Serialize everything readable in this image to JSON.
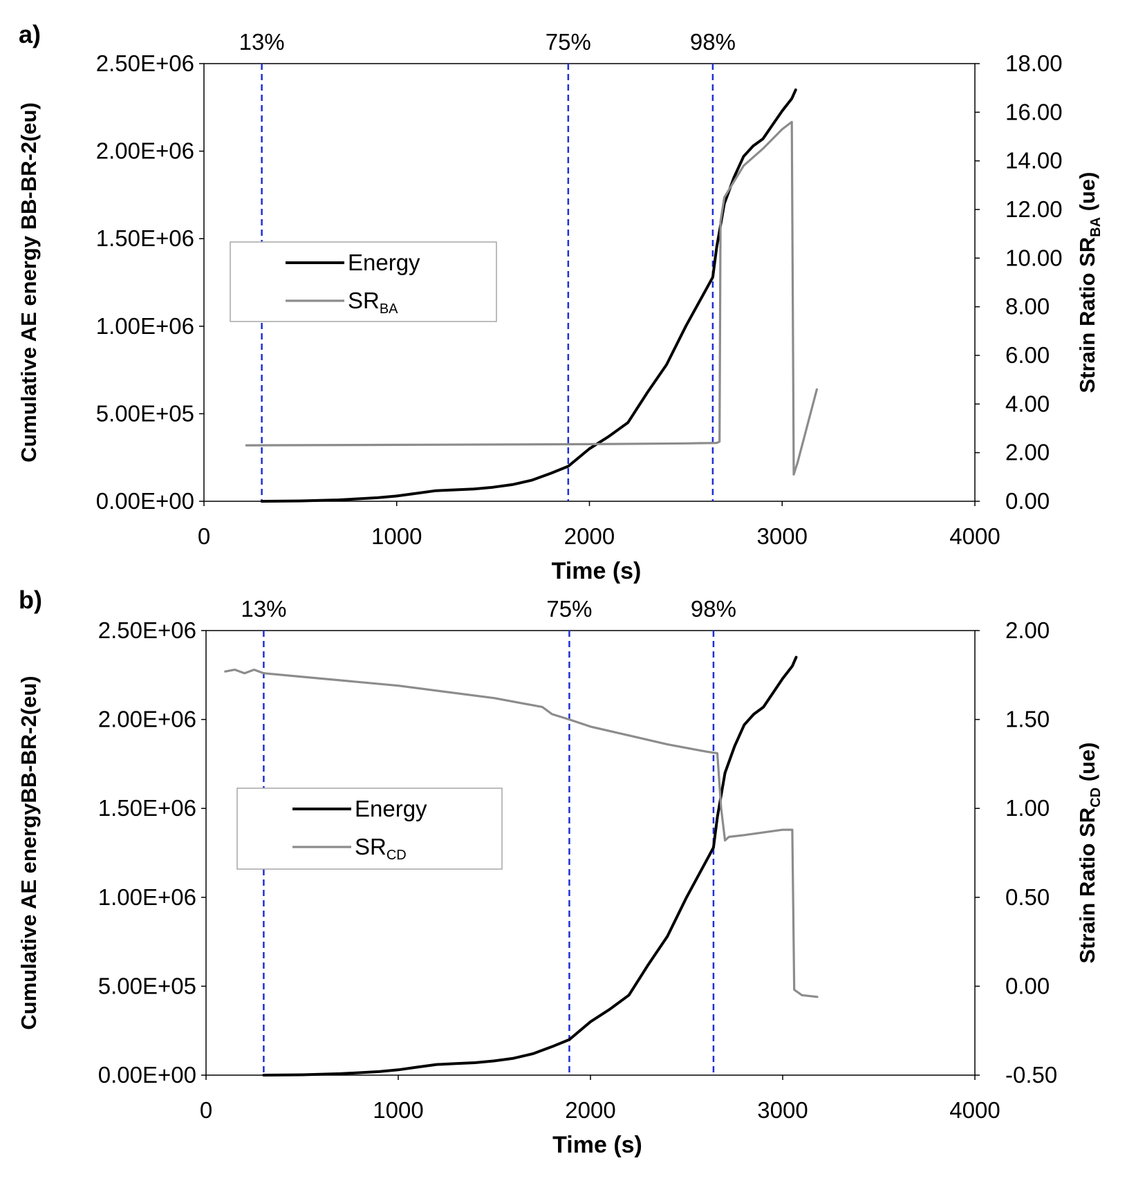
{
  "chart_data": [
    {
      "panel_label": "a)",
      "type": "line",
      "xlabel": "Time (s)",
      "xlim": [
        0,
        4000
      ],
      "xticks": [
        0,
        1000,
        2000,
        3000,
        4000
      ],
      "ylabel_left": "Cumulative AE energy BB-BR-2(eu)",
      "ylim_left": [
        0,
        2500000
      ],
      "yticks_left": [
        "0.00E+00",
        "5.00E+05",
        "1.00E+06",
        "1.50E+06",
        "2.00E+06",
        "2.50E+06"
      ],
      "ylabel_right": {
        "main": "Strain Ratio SR",
        "sub": "BA",
        "unit": " (ue)"
      },
      "ylim_right": [
        0,
        18
      ],
      "yticks_right": [
        "0.00",
        "2.00",
        "4.00",
        "6.00",
        "8.00",
        "10.00",
        "12.00",
        "14.00",
        "16.00",
        "18.00"
      ],
      "vlines": [
        {
          "x": 300,
          "label": "13%"
        },
        {
          "x": 1890,
          "label": "75%"
        },
        {
          "x": 2640,
          "label": "98%"
        }
      ],
      "legend": [
        {
          "name": "Energy"
        },
        {
          "name": "SR",
          "sub": "BA"
        }
      ],
      "legend_position": "middle-left",
      "series": [
        {
          "name": "Energy",
          "axis": "left",
          "color": "#000000",
          "x": [
            300,
            500,
            700,
            900,
            1000,
            1100,
            1200,
            1300,
            1400,
            1500,
            1600,
            1700,
            1800,
            1890,
            2000,
            2100,
            2200,
            2300,
            2400,
            2500,
            2600,
            2640,
            2660,
            2700,
            2750,
            2800,
            2850,
            2900,
            2950,
            3000,
            3050,
            3070
          ],
          "y": [
            0,
            2000,
            8000,
            20000,
            30000,
            45000,
            60000,
            65000,
            70000,
            80000,
            95000,
            120000,
            160000,
            200000,
            300000,
            370000,
            450000,
            620000,
            780000,
            1000000,
            1200000,
            1280000,
            1450000,
            1700000,
            1850000,
            1970000,
            2030000,
            2070000,
            2150000,
            2230000,
            2300000,
            2350000
          ]
        },
        {
          "name": "SR_BA",
          "axis": "right",
          "color": "#8c8c8c",
          "x": [
            220,
            1000,
            2000,
            2500,
            2660,
            2675,
            2680,
            2700,
            2800,
            2900,
            3000,
            3050,
            3060,
            3080,
            3180
          ],
          "y": [
            2.3,
            2.32,
            2.35,
            2.38,
            2.4,
            2.45,
            11.5,
            12.5,
            13.8,
            14.5,
            15.3,
            15.6,
            1.1,
            1.6,
            4.6
          ]
        }
      ]
    },
    {
      "panel_label": "b)",
      "type": "line",
      "xlabel": "Time (s)",
      "xlim": [
        0,
        4000
      ],
      "xticks": [
        0,
        1000,
        2000,
        3000,
        4000
      ],
      "ylabel_left": "Cumulative AE energyBB-BR-2(eu)",
      "ylim_left": [
        0,
        2500000
      ],
      "yticks_left": [
        "0.00E+00",
        "5.00E+05",
        "1.00E+06",
        "1.50E+06",
        "2.00E+06",
        "2.50E+06"
      ],
      "ylabel_right": {
        "main": "Strain Ratio SR",
        "sub": "CD",
        "unit": " (ue)"
      },
      "ylim_right": [
        -0.5,
        2.0
      ],
      "yticks_right": [
        "-0.50",
        "0.00",
        "0.50",
        "1.00",
        "1.50",
        "2.00"
      ],
      "vlines": [
        {
          "x": 300,
          "label": "13%"
        },
        {
          "x": 1890,
          "label": "75%"
        },
        {
          "x": 2640,
          "label": "98%"
        }
      ],
      "legend": [
        {
          "name": "Energy"
        },
        {
          "name": "SR",
          "sub": "CD"
        }
      ],
      "legend_position": "middle-left",
      "series": [
        {
          "name": "Energy",
          "axis": "left",
          "color": "#000000",
          "x": [
            300,
            500,
            700,
            900,
            1000,
            1100,
            1200,
            1300,
            1400,
            1500,
            1600,
            1700,
            1800,
            1890,
            2000,
            2100,
            2200,
            2300,
            2400,
            2500,
            2600,
            2640,
            2660,
            2700,
            2750,
            2800,
            2850,
            2900,
            2950,
            3000,
            3050,
            3070
          ],
          "y": [
            0,
            2000,
            8000,
            20000,
            30000,
            45000,
            60000,
            65000,
            70000,
            80000,
            95000,
            120000,
            160000,
            200000,
            300000,
            370000,
            450000,
            620000,
            780000,
            1000000,
            1200000,
            1280000,
            1450000,
            1700000,
            1850000,
            1970000,
            2030000,
            2070000,
            2150000,
            2230000,
            2300000,
            2350000
          ]
        },
        {
          "name": "SR_CD",
          "axis": "right",
          "color": "#8c8c8c",
          "x": [
            100,
            150,
            200,
            250,
            300,
            500,
            1000,
            1500,
            1750,
            1800,
            1890,
            2000,
            2200,
            2400,
            2600,
            2660,
            2680,
            2700,
            2720,
            2800,
            3000,
            3050,
            3060,
            3100,
            3180
          ],
          "y": [
            1.77,
            1.78,
            1.76,
            1.78,
            1.76,
            1.74,
            1.69,
            1.62,
            1.57,
            1.53,
            1.5,
            1.46,
            1.41,
            1.36,
            1.32,
            1.31,
            1.0,
            0.82,
            0.84,
            0.85,
            0.88,
            0.88,
            -0.02,
            -0.05,
            -0.06
          ]
        }
      ]
    }
  ]
}
